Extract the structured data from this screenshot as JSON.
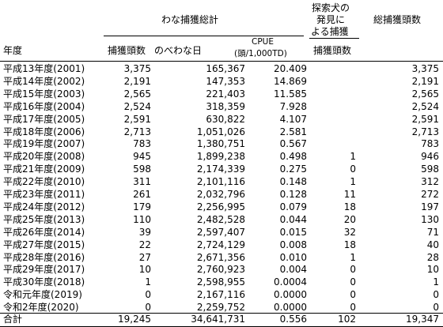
{
  "header": {
    "trap_total": "わな捕獲総計",
    "dog_line1": "探索犬の",
    "dog_line2": "発見に",
    "dog_line3": "よる捕獲",
    "total_captures": "総捕獲頭数",
    "year": "年度",
    "captures": "捕獲頭数",
    "trap_days": "のべわな日",
    "cpue": "CPUE",
    "cpue_unit": "(頭/1,000TD)",
    "dog_captures": "捕獲頭数"
  },
  "rows": [
    {
      "year": "平成13年度(2001)",
      "captures": "3,375",
      "trap_days": "165,367",
      "cpue": "20.409",
      "dog": "",
      "total": "3,375"
    },
    {
      "year": "平成14年度(2002)",
      "captures": "2,191",
      "trap_days": "147,353",
      "cpue": "14.869",
      "dog": "",
      "total": "2,191"
    },
    {
      "year": "平成15年度(2003)",
      "captures": "2,565",
      "trap_days": "221,403",
      "cpue": "11.585",
      "dog": "",
      "total": "2,565"
    },
    {
      "year": "平成16年度(2004)",
      "captures": "2,524",
      "trap_days": "318,359",
      "cpue": "7.928",
      "dog": "",
      "total": "2,524"
    },
    {
      "year": "平成17年度(2005)",
      "captures": "2,591",
      "trap_days": "630,822",
      "cpue": "4.107",
      "dog": "",
      "total": "2,591"
    },
    {
      "year": "平成18年度(2006)",
      "captures": "2,713",
      "trap_days": "1,051,026",
      "cpue": "2.581",
      "dog": "",
      "total": "2,713"
    },
    {
      "year": "平成19年度(2007)",
      "captures": "783",
      "trap_days": "1,380,751",
      "cpue": "0.567",
      "dog": "",
      "total": "783"
    },
    {
      "year": "平成20年度(2008)",
      "captures": "945",
      "trap_days": "1,899,238",
      "cpue": "0.498",
      "dog": "1",
      "total": "946"
    },
    {
      "year": "平成21年度(2009)",
      "captures": "598",
      "trap_days": "2,174,339",
      "cpue": "0.275",
      "dog": "0",
      "total": "598"
    },
    {
      "year": "平成22年度(2010)",
      "captures": "311",
      "trap_days": "2,101,116",
      "cpue": "0.148",
      "dog": "1",
      "total": "312"
    },
    {
      "year": "平成23年度(2011)",
      "captures": "261",
      "trap_days": "2,032,796",
      "cpue": "0.128",
      "dog": "11",
      "total": "272"
    },
    {
      "year": "平成24年度(2012)",
      "captures": "179",
      "trap_days": "2,256,995",
      "cpue": "0.079",
      "dog": "18",
      "total": "197"
    },
    {
      "year": "平成25年度(2013)",
      "captures": "110",
      "trap_days": "2,482,528",
      "cpue": "0.044",
      "dog": "20",
      "total": "130"
    },
    {
      "year": "平成26年度(2014)",
      "captures": "39",
      "trap_days": "2,597,407",
      "cpue": "0.015",
      "dog": "32",
      "total": "71"
    },
    {
      "year": "平成27年度(2015)",
      "captures": "22",
      "trap_days": "2,724,129",
      "cpue": "0.008",
      "dog": "18",
      "total": "40"
    },
    {
      "year": "平成28年度(2016)",
      "captures": "27",
      "trap_days": "2,671,356",
      "cpue": "0.010",
      "dog": "1",
      "total": "28"
    },
    {
      "year": "平成29年度(2017)",
      "captures": "10",
      "trap_days": "2,760,923",
      "cpue": "0.004",
      "dog": "0",
      "total": "10"
    },
    {
      "year": "平成30年度(2018)",
      "captures": "1",
      "trap_days": "2,598,955",
      "cpue": "0.0004",
      "dog": "0",
      "total": "1"
    },
    {
      "year": "令和元年度(2019)",
      "captures": "0",
      "trap_days": "2,167,116",
      "cpue": "0.0000",
      "dog": "0",
      "total": "0"
    },
    {
      "year": "令和2年度(2020)",
      "captures": "0",
      "trap_days": "2,259,752",
      "cpue": "0.0000",
      "dog": "0",
      "total": "0"
    }
  ],
  "totals": {
    "year": "合計",
    "captures": "19,245",
    "trap_days": "34,641,731",
    "cpue": "0.556",
    "dog": "102",
    "total": "19,347"
  }
}
